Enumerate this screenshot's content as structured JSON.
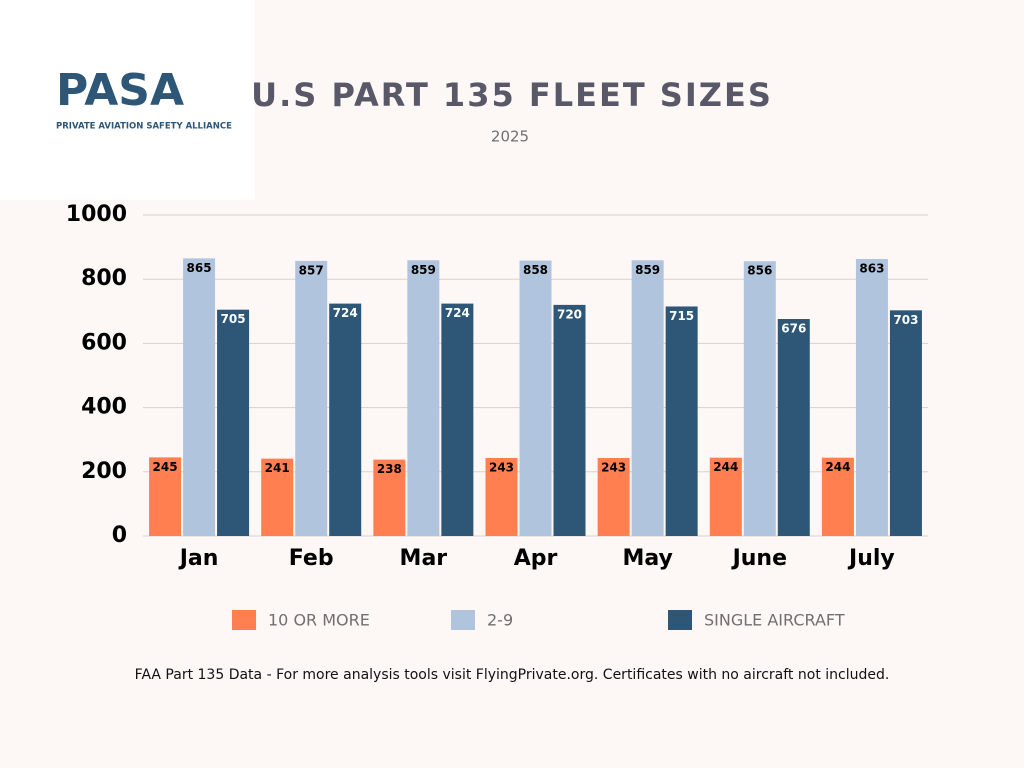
{
  "logo": {
    "mark": "PASA",
    "name": "PRIVATE AVIATION SAFETY ALLIANCE"
  },
  "chart_data": {
    "type": "bar",
    "title": "U.S PART 135 FLEET SIZES",
    "subtitle": "2025",
    "categories": [
      "Jan",
      "Feb",
      "Mar",
      "Apr",
      "May",
      "June",
      "July"
    ],
    "series": [
      {
        "name": "10 OR MORE",
        "color": "#ff7f50",
        "values": [
          245,
          241,
          238,
          243,
          243,
          244,
          244
        ]
      },
      {
        "name": "2-9",
        "color": "#b0c4de",
        "values": [
          865,
          857,
          859,
          858,
          859,
          856,
          863
        ]
      },
      {
        "name": "SINGLE AIRCRAFT",
        "color": "#2d5677",
        "values": [
          705,
          724,
          724,
          720,
          715,
          676,
          703
        ]
      }
    ],
    "ylim": [
      0,
      1000
    ],
    "yticks": [
      0,
      200,
      400,
      600,
      800,
      1000
    ],
    "grid": true,
    "note": "FAA Part 135 Data - For more analysis tools visit FlyingPrivate.org. Certificates with no aircraft not included."
  }
}
